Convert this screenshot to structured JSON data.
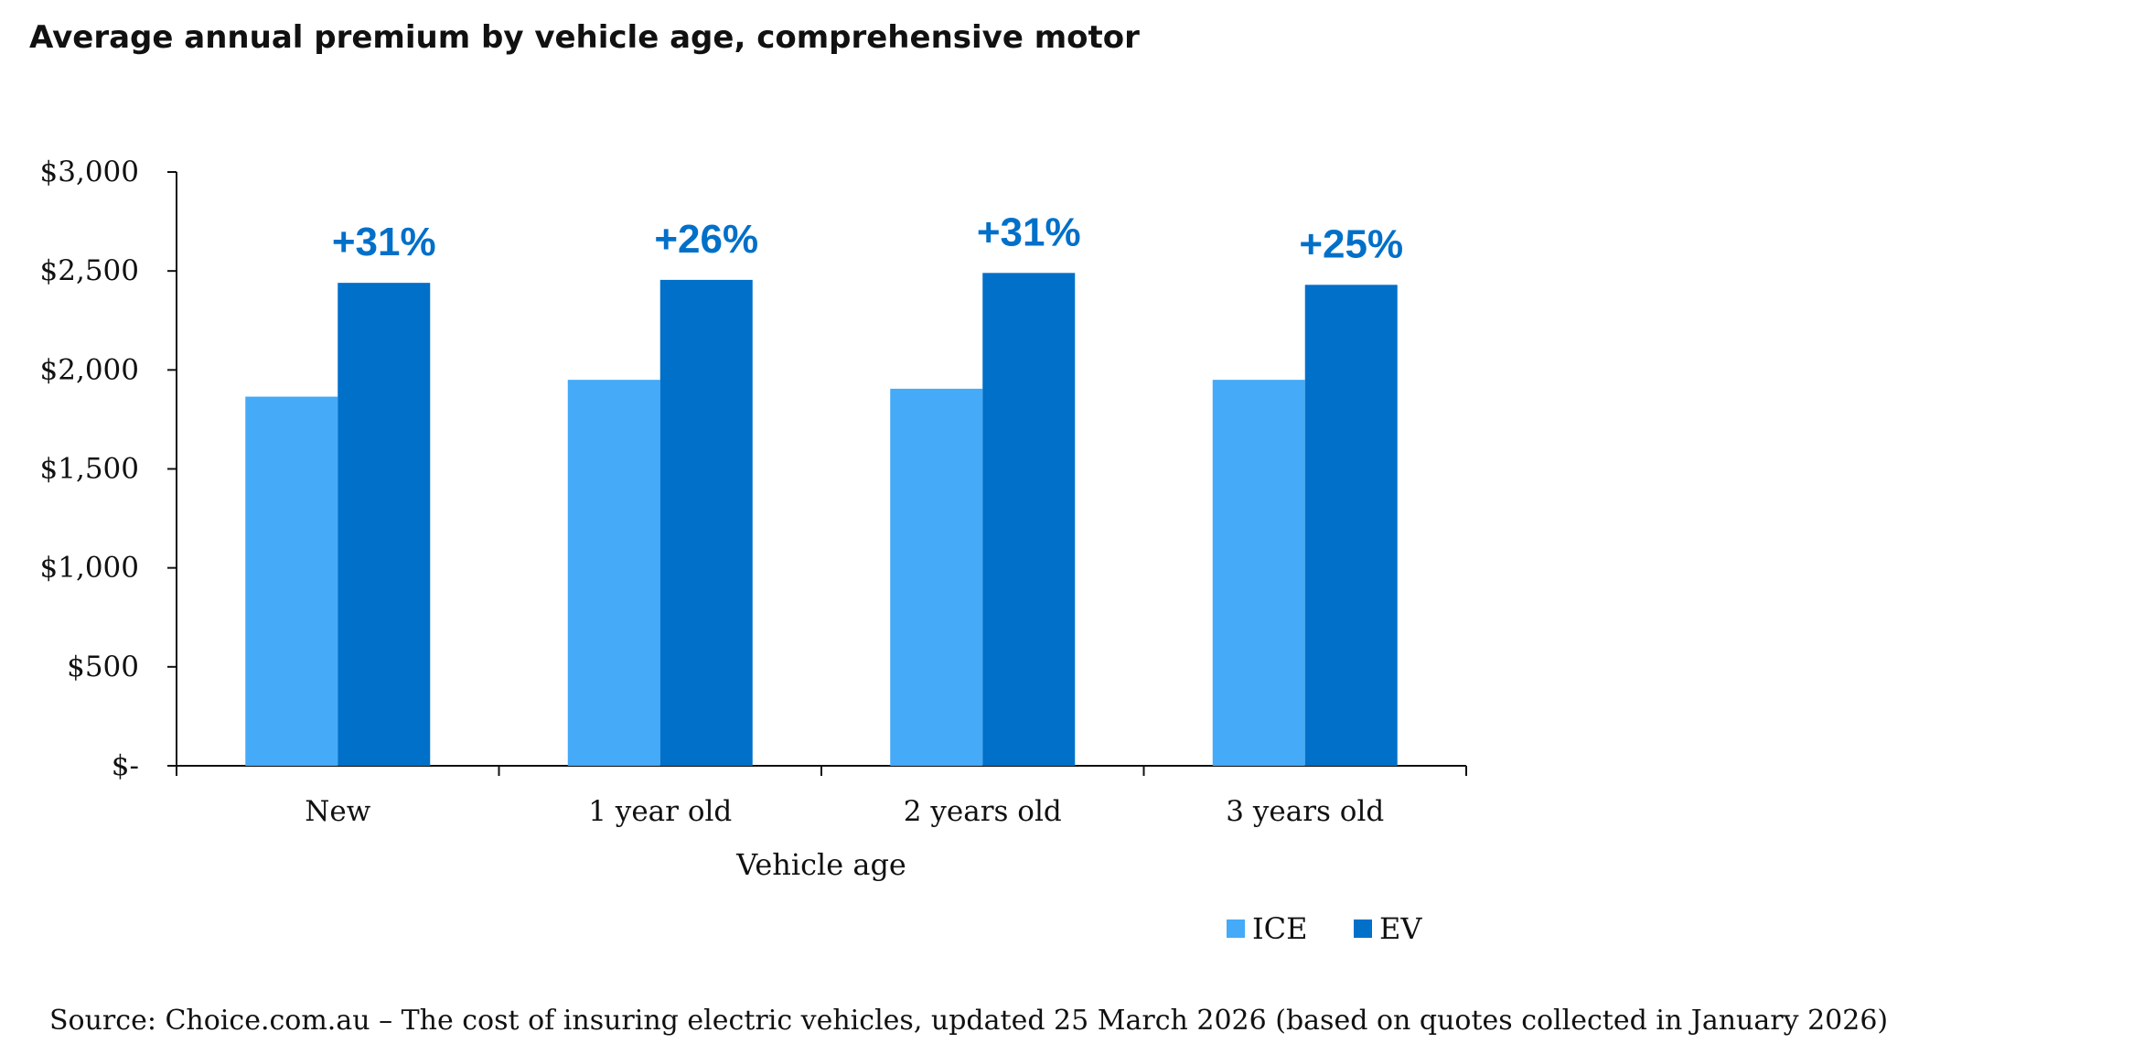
{
  "chart_data": {
    "type": "bar",
    "title": "Average annual premium by vehicle age, comprehensive motor",
    "xlabel": "Vehicle age",
    "ylabel": "",
    "categories": [
      "New",
      "1 year old",
      "2 years old",
      "3 years old"
    ],
    "series": [
      {
        "name": "ICE",
        "color": "#45AAF7",
        "values": [
          1865,
          1950,
          1905,
          1950
        ]
      },
      {
        "name": "EV",
        "color": "#0070C9",
        "values": [
          2440,
          2455,
          2490,
          2430
        ]
      }
    ],
    "annotations": [
      "+31%",
      "+26%",
      "+31%",
      "+25%"
    ],
    "ylim": [
      0,
      3000
    ],
    "yticks": [
      0,
      500,
      1000,
      1500,
      2000,
      2500,
      3000
    ],
    "ytick_labels": [
      "$-",
      "$500",
      "$1,000",
      "$1,500",
      "$2,000",
      "$2,500",
      "$3,000"
    ],
    "grid": false,
    "legend_position": "bottom-right",
    "annotation_color": "#0070C9"
  },
  "source": "Source: Choice.com.au – The cost of insuring electric vehicles, updated 25 March 2026 (based on quotes collected in January 2026)"
}
